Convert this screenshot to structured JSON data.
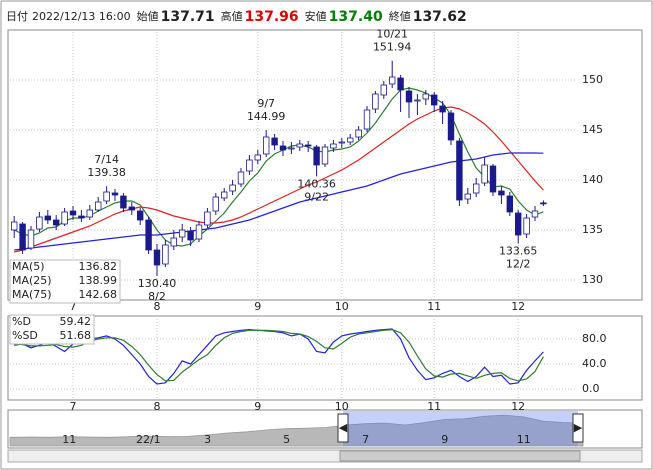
{
  "header": {
    "date_label": "日付",
    "date": "2022/12/13 16:00",
    "fields": [
      {
        "label": "始値",
        "value": "137.71"
      },
      {
        "label": "高値",
        "value": "137.96",
        "color": "#e00000"
      },
      {
        "label": "安値",
        "value": "137.40",
        "color": "#008000"
      },
      {
        "label": "終値",
        "value": "137.62"
      }
    ]
  },
  "chart_data": [
    {
      "type": "candlestick",
      "categories": [
        null,
        null,
        null,
        null,
        null,
        null,
        null,
        "7",
        null,
        null,
        null,
        null,
        null,
        null,
        null,
        null,
        null,
        "8",
        null,
        null,
        null,
        null,
        null,
        null,
        null,
        null,
        null,
        null,
        null,
        "9",
        null,
        null,
        null,
        null,
        null,
        null,
        null,
        null,
        null,
        "10",
        null,
        null,
        null,
        null,
        null,
        null,
        null,
        null,
        null,
        null,
        "11",
        null,
        null,
        null,
        null,
        null,
        null,
        null,
        null,
        null,
        "12",
        null,
        null,
        null
      ],
      "ohlc": [
        [
          135.0,
          136.4,
          134.2,
          135.8
        ],
        [
          135.6,
          135.8,
          132.6,
          133.0
        ],
        [
          133.2,
          135.4,
          133.0,
          135.0
        ],
        [
          135.1,
          136.8,
          134.8,
          136.3
        ],
        [
          136.4,
          137.0,
          135.6,
          136.0
        ],
        [
          136.0,
          136.5,
          135.0,
          135.5
        ],
        [
          135.6,
          137.2,
          135.4,
          136.8
        ],
        [
          136.9,
          137.4,
          136.0,
          136.5
        ],
        [
          136.4,
          137.0,
          135.8,
          136.2
        ],
        [
          136.3,
          137.5,
          136.0,
          137.0
        ],
        [
          137.0,
          138.3,
          136.8,
          137.8
        ],
        [
          137.9,
          139.38,
          137.6,
          138.8
        ],
        [
          138.7,
          139.1,
          137.9,
          138.5
        ],
        [
          138.4,
          138.7,
          136.8,
          137.2
        ],
        [
          137.3,
          137.8,
          136.5,
          137.0
        ],
        [
          136.9,
          137.2,
          135.5,
          136.0
        ],
        [
          136.0,
          136.3,
          132.6,
          133.0
        ],
        [
          133.0,
          133.6,
          130.4,
          131.5
        ],
        [
          131.6,
          134.0,
          131.3,
          133.5
        ],
        [
          133.4,
          135.0,
          133.0,
          134.2
        ],
        [
          134.3,
          135.6,
          133.8,
          135.0
        ],
        [
          134.9,
          135.3,
          133.4,
          134.0
        ],
        [
          134.1,
          135.9,
          133.8,
          135.5
        ],
        [
          135.5,
          137.2,
          135.2,
          136.8
        ],
        [
          136.9,
          138.7,
          136.5,
          138.3
        ],
        [
          138.2,
          139.2,
          137.9,
          138.8
        ],
        [
          138.9,
          140.0,
          138.5,
          139.5
        ],
        [
          139.6,
          141.2,
          139.3,
          140.8
        ],
        [
          140.9,
          142.5,
          140.5,
          142.0
        ],
        [
          142.0,
          143.0,
          141.6,
          142.5
        ],
        [
          142.6,
          144.99,
          142.3,
          144.3
        ],
        [
          144.2,
          144.6,
          143.0,
          143.5
        ],
        [
          143.4,
          143.9,
          142.4,
          143.0
        ],
        [
          143.1,
          143.8,
          142.6,
          143.2
        ],
        [
          143.3,
          144.0,
          142.9,
          143.6
        ],
        [
          143.5,
          143.9,
          142.8,
          143.4
        ],
        [
          143.3,
          143.5,
          140.36,
          141.5
        ],
        [
          141.6,
          143.6,
          141.3,
          143.3
        ],
        [
          143.2,
          144.0,
          142.8,
          143.6
        ],
        [
          143.7,
          144.2,
          143.2,
          143.8
        ],
        [
          143.8,
          144.6,
          143.5,
          144.2
        ],
        [
          144.3,
          145.4,
          144.0,
          145.0
        ],
        [
          145.1,
          147.4,
          144.8,
          147.0
        ],
        [
          147.1,
          148.9,
          146.7,
          148.6
        ],
        [
          148.5,
          149.9,
          148.1,
          149.5
        ],
        [
          149.6,
          151.94,
          149.2,
          150.3
        ],
        [
          150.2,
          150.5,
          146.8,
          149.0
        ],
        [
          148.9,
          149.3,
          146.2,
          147.8
        ],
        [
          147.9,
          148.6,
          146.5,
          148.0
        ],
        [
          148.1,
          149.0,
          147.5,
          148.6
        ],
        [
          148.5,
          148.8,
          146.8,
          147.5
        ],
        [
          147.4,
          147.9,
          145.6,
          146.8
        ],
        [
          146.7,
          147.0,
          143.5,
          144.0
        ],
        [
          143.9,
          144.2,
          137.4,
          138.0
        ],
        [
          138.1,
          139.2,
          137.6,
          138.6
        ],
        [
          138.7,
          140.2,
          138.3,
          139.6
        ],
        [
          139.7,
          142.3,
          139.4,
          141.5
        ],
        [
          141.4,
          141.6,
          138.4,
          138.8
        ],
        [
          138.9,
          139.4,
          137.6,
          138.5
        ],
        [
          138.4,
          138.8,
          136.4,
          136.8
        ],
        [
          136.7,
          137.0,
          133.65,
          134.5
        ],
        [
          134.6,
          136.6,
          134.2,
          136.2
        ],
        [
          136.3,
          137.4,
          135.9,
          136.9
        ],
        [
          137.71,
          137.96,
          137.4,
          137.62
        ]
      ],
      "up_color": "#ffffff",
      "down_color": "#1a1a8c",
      "ylim": [
        128,
        154.8
      ],
      "yticks": [
        130,
        135,
        140,
        145,
        150
      ],
      "grid": true,
      "series": [
        {
          "name": "MA(5)",
          "color": "#2e7d32",
          "legend_value": "136.82",
          "values": [
            135.0,
            134.6,
            134.4,
            134.7,
            135.2,
            135.3,
            135.9,
            136.2,
            136.2,
            136.4,
            136.9,
            137.3,
            137.7,
            137.9,
            137.9,
            137.5,
            136.3,
            135.0,
            134.0,
            133.5,
            133.4,
            133.6,
            134.4,
            135.1,
            135.9,
            136.7,
            137.8,
            138.8,
            139.9,
            140.7,
            141.9,
            142.6,
            143.0,
            143.4,
            143.5,
            143.3,
            142.9,
            142.8,
            143.0,
            143.1,
            143.3,
            143.9,
            144.7,
            145.7,
            146.9,
            148.1,
            149.0,
            149.2,
            149.0,
            148.7,
            148.2,
            147.7,
            146.5,
            144.6,
            142.8,
            141.2,
            140.3,
            139.3,
            139.4,
            139.1,
            137.9,
            137.0,
            136.5,
            136.82
          ]
        },
        {
          "name": "MA(25)",
          "color": "#e02020",
          "legend_value": "138.99",
          "values": [
            132.8,
            133.0,
            133.3,
            133.6,
            133.9,
            134.2,
            134.5,
            134.8,
            135.1,
            135.4,
            135.8,
            136.2,
            136.6,
            136.9,
            137.1,
            137.3,
            137.2,
            137.0,
            136.7,
            136.4,
            136.2,
            136.0,
            135.8,
            135.7,
            135.7,
            135.8,
            136.0,
            136.3,
            136.7,
            137.1,
            137.5,
            137.9,
            138.3,
            138.7,
            139.1,
            139.5,
            139.8,
            140.2,
            140.6,
            141.0,
            141.5,
            142.0,
            142.6,
            143.2,
            143.8,
            144.4,
            145.0,
            145.6,
            146.1,
            146.5,
            146.9,
            147.2,
            147.3,
            147.1,
            146.7,
            146.2,
            145.6,
            144.8,
            143.9,
            142.9,
            141.9,
            140.9,
            139.9,
            138.99
          ]
        },
        {
          "name": "MA(75)",
          "color": "#2222dd",
          "legend_value": "142.68",
          "values": [
            133.0,
            133.1,
            133.2,
            133.3,
            133.4,
            133.5,
            133.6,
            133.7,
            133.8,
            133.9,
            134.0,
            134.1,
            134.2,
            134.3,
            134.4,
            134.5,
            134.5,
            134.5,
            134.6,
            134.7,
            134.8,
            134.9,
            135.0,
            135.1,
            135.2,
            135.4,
            135.6,
            135.8,
            136.0,
            136.3,
            136.6,
            136.9,
            137.2,
            137.5,
            137.8,
            138.0,
            138.2,
            138.4,
            138.6,
            138.8,
            139.0,
            139.2,
            139.4,
            139.7,
            140.0,
            140.3,
            140.6,
            140.8,
            141.0,
            141.2,
            141.4,
            141.6,
            141.8,
            141.9,
            142.0,
            142.1,
            142.3,
            142.5,
            142.6,
            142.7,
            142.7,
            142.7,
            142.7,
            142.68
          ]
        }
      ],
      "annotations": [
        {
          "kind": "high",
          "date": "7/14",
          "price": 139.38
        },
        {
          "kind": "low",
          "date": "8/2",
          "price": {
            "value": 130.4,
            "label": "130.40"
          }
        },
        {
          "kind": "high",
          "date": "9/7",
          "price": 144.99
        },
        {
          "kind": "low",
          "date": "9/22",
          "price": 140.36
        },
        {
          "kind": "high",
          "date": "10/21",
          "price": 151.94
        },
        {
          "kind": "low",
          "date": "12/2",
          "price": 133.65
        }
      ]
    },
    {
      "type": "line",
      "categories": [
        null,
        null,
        null,
        null,
        null,
        null,
        null,
        "7",
        null,
        null,
        null,
        null,
        null,
        null,
        null,
        null,
        null,
        "8",
        null,
        null,
        null,
        null,
        null,
        null,
        null,
        null,
        null,
        null,
        null,
        "9",
        null,
        null,
        null,
        null,
        null,
        null,
        null,
        null,
        null,
        "10",
        null,
        null,
        null,
        null,
        null,
        null,
        null,
        null,
        null,
        null,
        "11",
        null,
        null,
        null,
        null,
        null,
        null,
        null,
        null,
        null,
        "12",
        null,
        null,
        null
      ],
      "ylim": [
        -17.6,
        116.8
      ],
      "yticks": [
        {
          "value": 0,
          "label": "0.0"
        },
        {
          "value": 40,
          "label": "40.0"
        },
        {
          "value": 80,
          "label": "80.0"
        }
      ],
      "grid": true,
      "series": [
        {
          "name": "%D",
          "color": "#2222dd",
          "legend_value": "59.42",
          "values": [
            70,
            72,
            66,
            70,
            75,
            68,
            60,
            72,
            78,
            80,
            82,
            85,
            80,
            70,
            55,
            40,
            20,
            8,
            10,
            25,
            45,
            40,
            55,
            70,
            85,
            90,
            92,
            94,
            95,
            94,
            93,
            92,
            90,
            85,
            88,
            80,
            60,
            58,
            75,
            85,
            88,
            90,
            92,
            94,
            95,
            96,
            80,
            50,
            30,
            15,
            18,
            25,
            30,
            20,
            12,
            20,
            35,
            20,
            22,
            8,
            10,
            30,
            45,
            59.42
          ]
        },
        {
          "name": "%SD",
          "color": "#2e7d32",
          "legend_value": "51.68",
          "values": [
            72,
            71,
            69,
            69,
            70,
            71,
            68,
            67,
            70,
            77,
            80,
            82,
            82,
            78,
            68,
            55,
            38,
            23,
            13,
            14,
            27,
            37,
            47,
            55,
            70,
            82,
            89,
            92,
            94,
            94,
            94,
            93,
            92,
            89,
            88,
            84,
            76,
            66,
            64,
            73,
            83,
            88,
            90,
            92,
            94,
            95,
            90,
            75,
            53,
            32,
            21,
            19,
            24,
            25,
            21,
            17,
            22,
            25,
            26,
            17,
            13,
            16,
            28,
            51.68
          ]
        }
      ]
    },
    {
      "type": "area",
      "categories": [
        null,
        null,
        null,
        "11",
        null,
        null,
        null,
        "22/1",
        null,
        null,
        "3",
        null,
        null,
        null,
        "5",
        null,
        null,
        null,
        "7",
        null,
        null,
        null,
        "9",
        null,
        null,
        null,
        "11",
        null,
        null,
        null
      ],
      "values": [
        114,
        114.5,
        114,
        115,
        114.5,
        114,
        115,
        116,
        115,
        115.5,
        118,
        121,
        123,
        126,
        128,
        129,
        130,
        134,
        136,
        137,
        134,
        138,
        143,
        144,
        148,
        150,
        147,
        140,
        138,
        137
      ],
      "ylim": [
        100,
        155
      ],
      "color": "#b8b8b8"
    }
  ]
}
